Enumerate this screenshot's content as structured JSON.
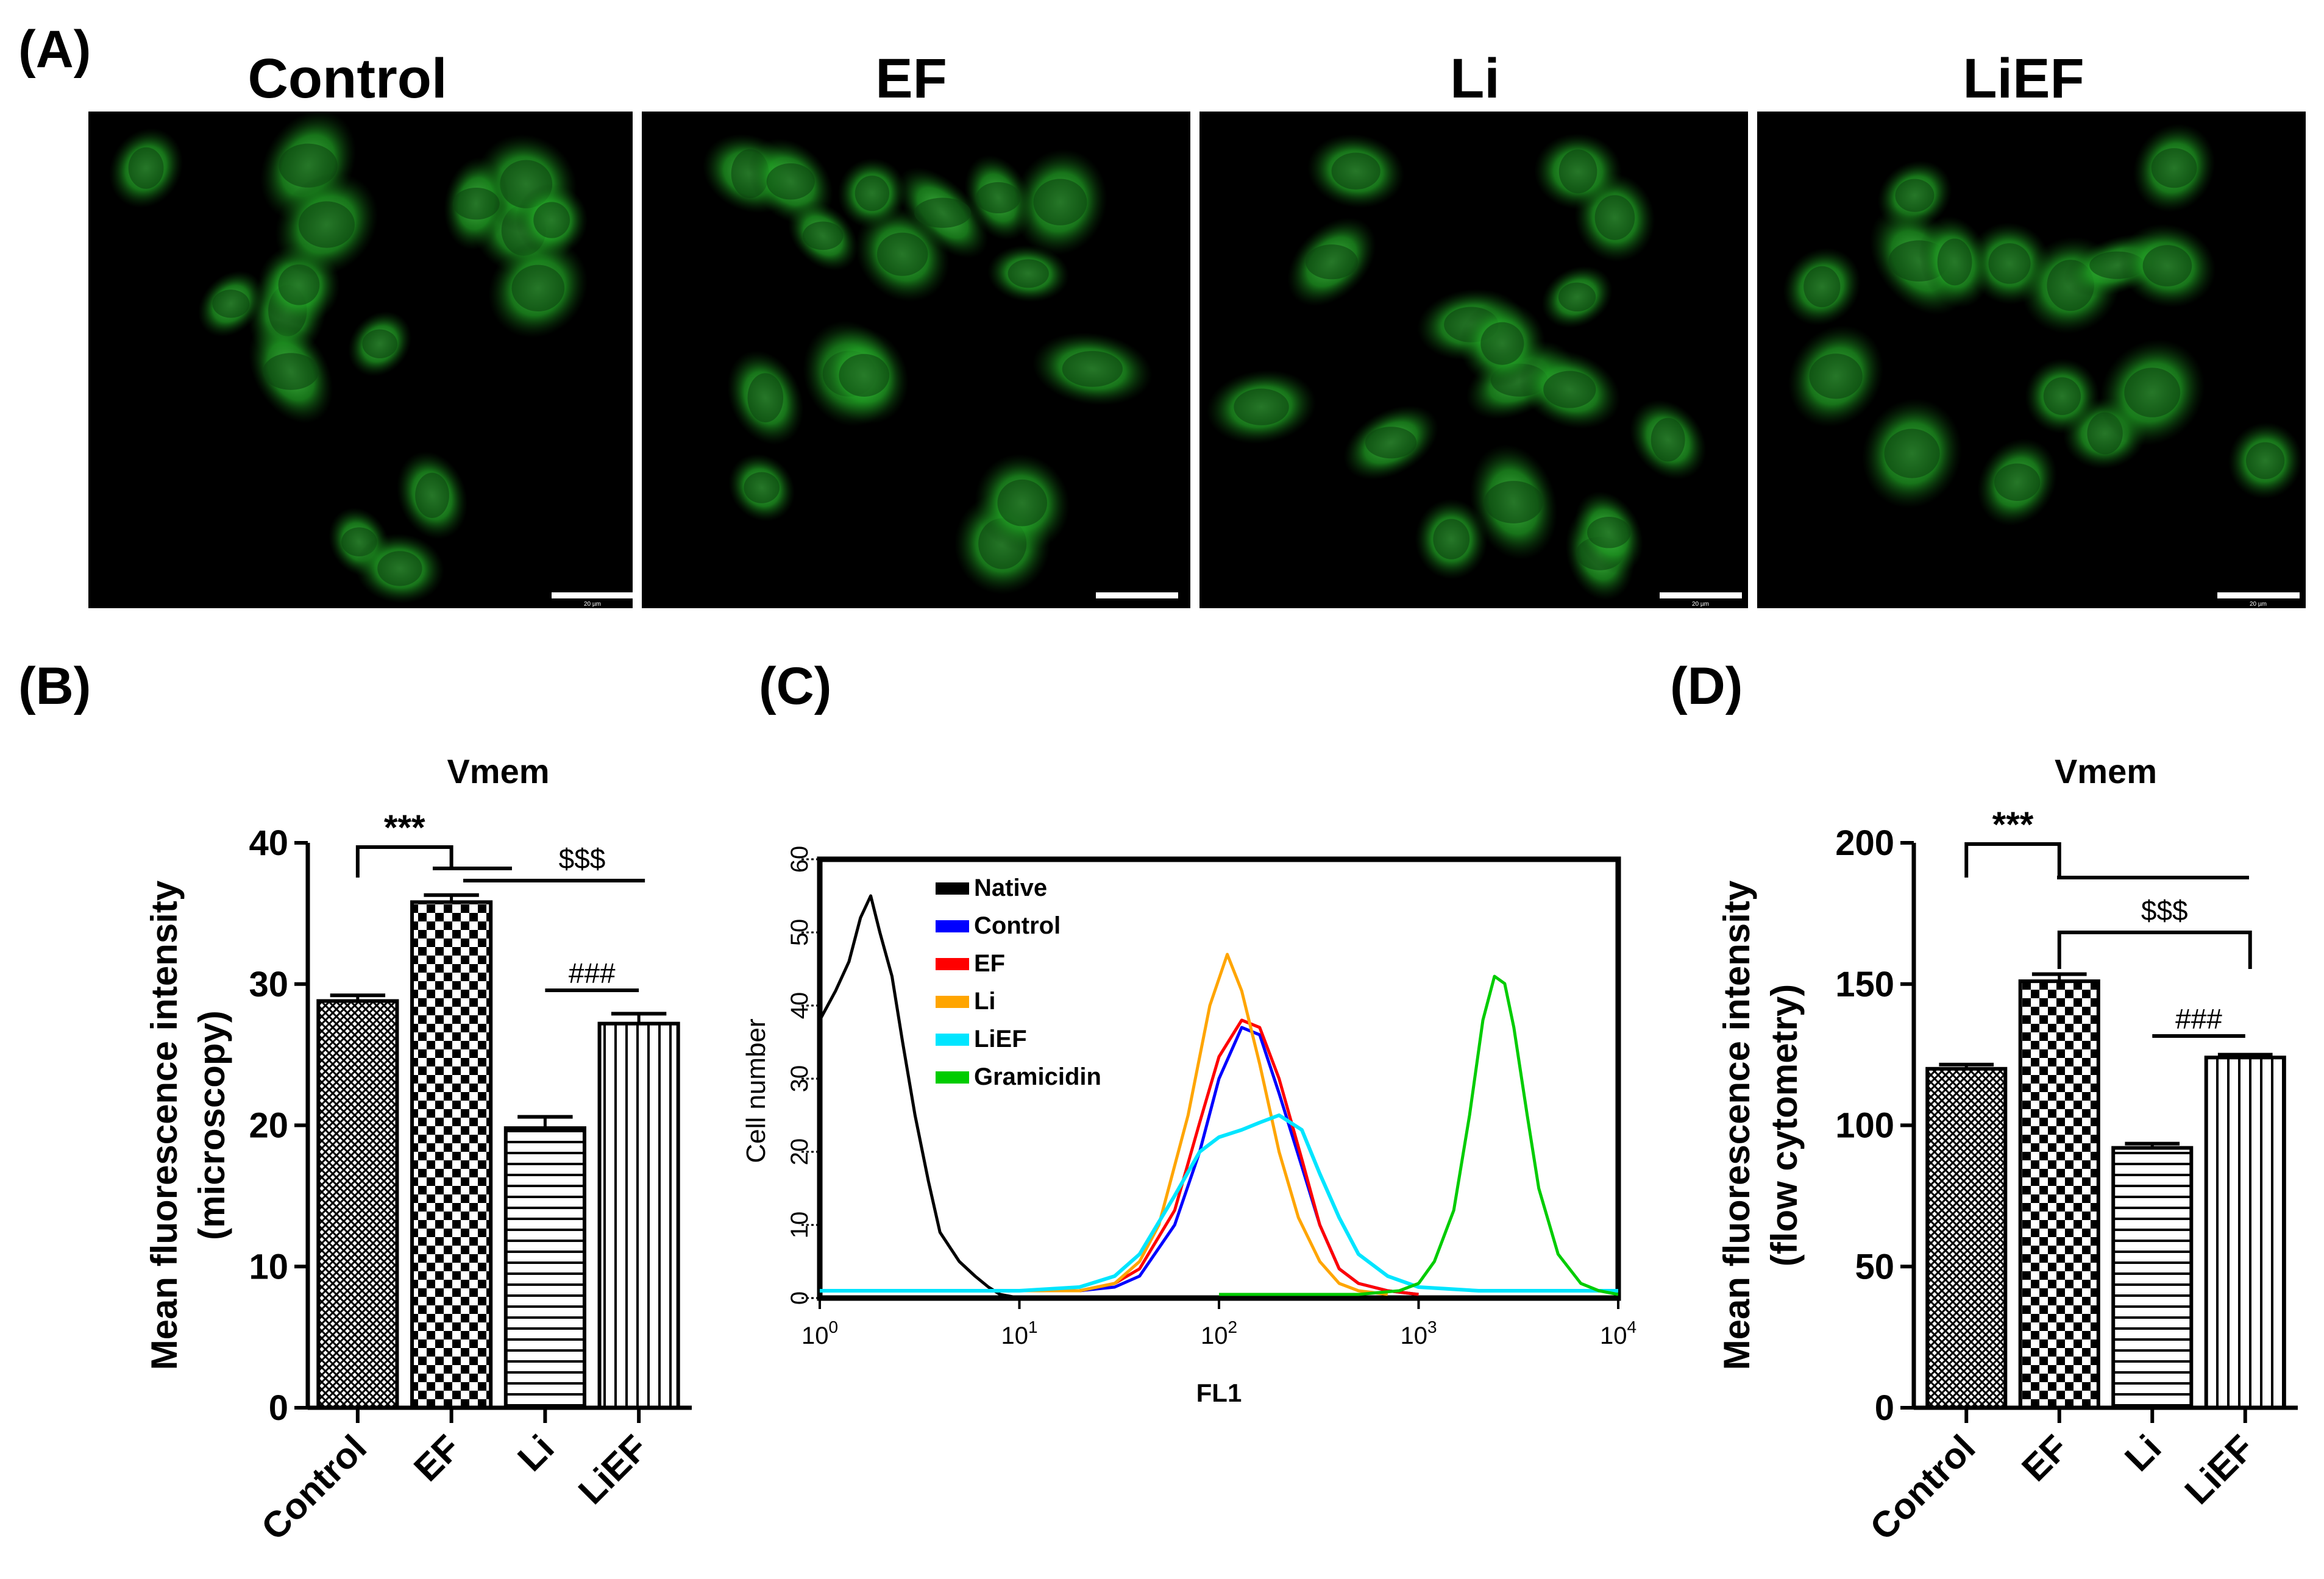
{
  "panels": {
    "A": {
      "label": "(A)",
      "images": [
        {
          "title": "Control",
          "description": "green fluorescence micrograph of cells",
          "scalebar_text": "20 µm"
        },
        {
          "title": "EF",
          "description": "green fluorescence micrograph of cells",
          "scalebar_text": ""
        },
        {
          "title": "Li",
          "description": "green fluorescence micrograph of cells",
          "scalebar_text": "20 µm"
        },
        {
          "title": "LiEF",
          "description": "green fluorescence micrograph of cells",
          "scalebar_text": "20 µm"
        }
      ]
    },
    "B": {
      "label": "(B)"
    },
    "C": {
      "label": "(C)"
    },
    "D": {
      "label": "(D)"
    }
  },
  "chart_data": [
    {
      "id": "B",
      "type": "bar",
      "title": "Vmem",
      "ylabel_line1": "Mean fluorescence intensity",
      "ylabel_line2": "(microscopy)",
      "categories": [
        "Control",
        "EF",
        "Li",
        "LiEF"
      ],
      "values": [
        28.8,
        35.8,
        19.8,
        27.2
      ],
      "errors": [
        0.4,
        0.5,
        0.8,
        0.7
      ],
      "patterns": [
        "crosshatch",
        "checker",
        "hlines",
        "vlines"
      ],
      "ylim": [
        0,
        40
      ],
      "yticks": [
        "0",
        "10",
        "20",
        "30",
        "40"
      ],
      "significance": [
        {
          "symbol": "***",
          "from": "Control",
          "to": "EF, Li, LiEF"
        },
        {
          "symbol": "$$$",
          "from": "EF",
          "to": "LiEF"
        },
        {
          "symbol": "###",
          "from": "Li",
          "to": "LiEF"
        }
      ]
    },
    {
      "id": "C",
      "type": "line",
      "xlabel": "FL1",
      "ylabel": "Cell number",
      "xscale": "log",
      "xlim": [
        1,
        10000
      ],
      "xticks": [
        {
          "base": "10",
          "exp": "0"
        },
        {
          "base": "10",
          "exp": "1"
        },
        {
          "base": "10",
          "exp": "2"
        },
        {
          "base": "10",
          "exp": "3"
        },
        {
          "base": "10",
          "exp": "4"
        }
      ],
      "ylim": [
        0,
        60
      ],
      "yticks": [
        "0",
        "10",
        "20",
        "30",
        "40",
        "50",
        "60"
      ],
      "legend_position": "top-left",
      "series": [
        {
          "name": "Native",
          "color": "#000000",
          "x": [
            1,
            1.2,
            1.4,
            1.6,
            1.8,
            2,
            2.3,
            2.6,
            3,
            3.5,
            4,
            5,
            6,
            7,
            8,
            10
          ],
          "y": [
            38,
            42,
            46,
            52,
            55,
            50,
            44,
            35,
            25,
            16,
            9,
            5,
            3,
            1.5,
            0.5,
            0
          ]
        },
        {
          "name": "Control",
          "color": "#0000ff",
          "x": [
            10,
            20,
            30,
            40,
            60,
            80,
            100,
            130,
            160,
            200,
            260,
            320,
            400,
            500,
            700,
            1000
          ],
          "y": [
            1,
            1,
            1.5,
            3,
            10,
            20,
            30,
            37,
            36,
            28,
            18,
            10,
            4,
            2,
            1,
            0.5
          ]
        },
        {
          "name": "EF",
          "color": "#ff0000",
          "x": [
            10,
            20,
            30,
            40,
            60,
            80,
            100,
            130,
            160,
            200,
            260,
            320,
            400,
            500,
            700,
            1000
          ],
          "y": [
            1,
            1,
            2,
            4,
            12,
            24,
            33,
            38,
            37,
            30,
            19,
            10,
            4,
            2,
            1,
            0.5
          ]
        },
        {
          "name": "Li",
          "color": "#ffa500",
          "x": [
            10,
            20,
            30,
            40,
            50,
            70,
            90,
            110,
            130,
            160,
            200,
            250,
            320,
            400,
            500,
            700
          ],
          "y": [
            1,
            1,
            2,
            5,
            10,
            25,
            40,
            47,
            42,
            32,
            20,
            11,
            5,
            2,
            1,
            0.5
          ]
        },
        {
          "name": "LiEF",
          "color": "#00e5ff",
          "x": [
            1,
            5,
            10,
            20,
            30,
            40,
            60,
            80,
            100,
            130,
            160,
            200,
            260,
            320,
            400,
            500,
            700,
            1000,
            2000,
            10000
          ],
          "y": [
            1,
            1,
            1,
            1.5,
            3,
            6,
            14,
            20,
            22,
            23,
            24,
            25,
            23,
            17,
            11,
            6,
            3,
            1.5,
            1,
            1
          ]
        },
        {
          "name": "Gramicidin",
          "color": "#00cc00",
          "x": [
            100,
            500,
            800,
            1000,
            1200,
            1500,
            1800,
            2100,
            2400,
            2700,
            3000,
            3500,
            4000,
            5000,
            6500,
            8000,
            10000
          ],
          "y": [
            0.5,
            0.5,
            1,
            2,
            5,
            12,
            25,
            38,
            44,
            43,
            37,
            25,
            15,
            6,
            2,
            1,
            0.5
          ]
        }
      ]
    },
    {
      "id": "D",
      "type": "bar",
      "title": "Vmem",
      "ylabel_line1": "Mean fluorescence intensity",
      "ylabel_line2": "(flow cytometry)",
      "categories": [
        "Control",
        "EF",
        "Li",
        "LiEF"
      ],
      "values": [
        120,
        151,
        92,
        124
      ],
      "errors": [
        1.5,
        2.5,
        1.5,
        1.0
      ],
      "patterns": [
        "crosshatch",
        "checker",
        "hlines",
        "vlines"
      ],
      "ylim": [
        0,
        200
      ],
      "yticks": [
        "0",
        "50",
        "100",
        "150",
        "200"
      ],
      "significance": [
        {
          "symbol": "***",
          "from": "Control",
          "to": "EF, Li, LiEF"
        },
        {
          "symbol": "$$$",
          "from": "EF",
          "to": "LiEF"
        },
        {
          "symbol": "###",
          "from": "Li",
          "to": "LiEF"
        }
      ]
    }
  ]
}
